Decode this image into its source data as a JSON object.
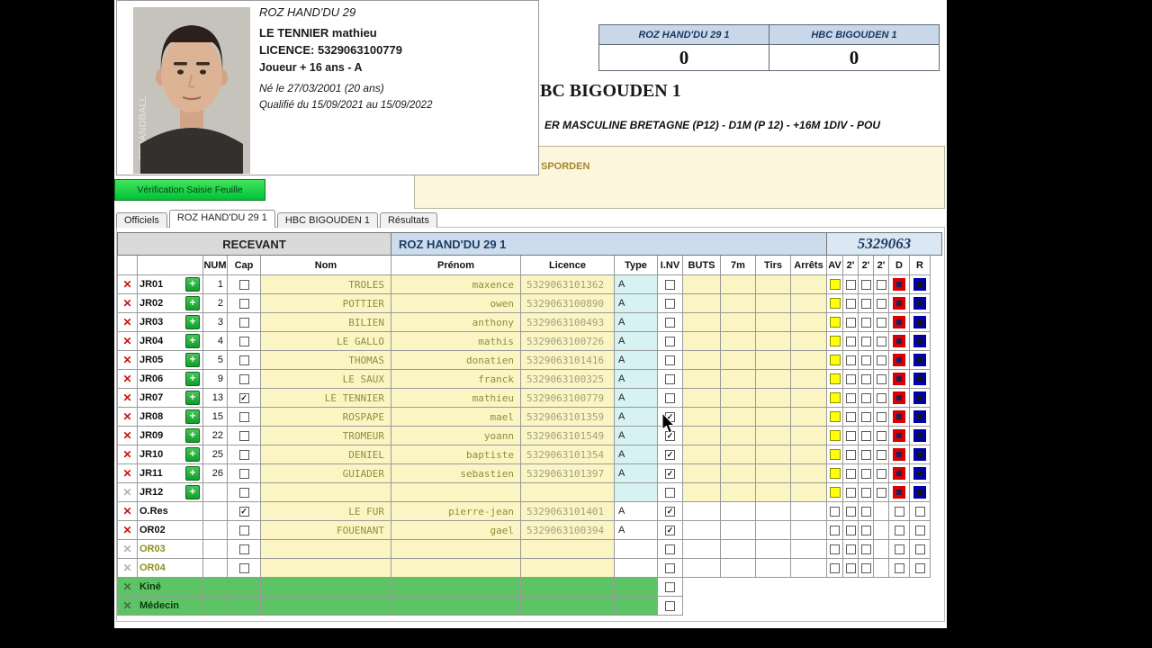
{
  "popup": {
    "club": "ROZ HAND'DU 29",
    "player_name": "LE TENNIER mathieu",
    "licence_line": "LICENCE: 5329063100779",
    "category_line": "Joueur + 16 ans  -  A",
    "birth_line": "Né le 27/03/2001  (20 ans)",
    "qualified_line": "Qualifié du 15/09/2021 au 15/09/2022"
  },
  "scoreboard": {
    "teams": [
      {
        "name": "ROZ HAND'DU 29 1",
        "score": "0"
      },
      {
        "name": "HBC BIGOUDEN 1",
        "score": "0"
      }
    ]
  },
  "match": {
    "title_fragment": "BC BIGOUDEN 1",
    "competition_fragment": "ER MASCULINE BRETAGNE (P12) - D1M (P 12) - +16M 1DIV - POU",
    "venue_fragment": "SPORDEN"
  },
  "actions": {
    "verify_label": "Vérification Saisie Feuille"
  },
  "tabs": {
    "items": [
      "Officiels",
      "ROZ HAND'DU 29 1",
      "HBC BIGOUDEN 1",
      "Résultats"
    ],
    "active_index": 1
  },
  "roster": {
    "recevant_label": "RECEVANT",
    "team_name": "ROZ HAND'DU 29 1",
    "club_code": "5329063",
    "columns": [
      "NUM",
      "Cap",
      "Nom",
      "Prénom",
      "Licence",
      "Type",
      "I.NV",
      "BUTS",
      "7m",
      "Tirs",
      "Arrêts",
      "AV",
      "2'",
      "2'",
      "2'",
      "D",
      "R"
    ],
    "rows": [
      {
        "id": "JR01",
        "type": "player",
        "num": "1",
        "cap": false,
        "nom": "TROLES",
        "prenom": "maxence",
        "licence": "5329063101362",
        "lic_type": "A",
        "inv": false
      },
      {
        "id": "JR02",
        "type": "player",
        "num": "2",
        "cap": false,
        "nom": "POTTIER",
        "prenom": "owen",
        "licence": "5329063100890",
        "lic_type": "A",
        "inv": false
      },
      {
        "id": "JR03",
        "type": "player",
        "num": "3",
        "cap": false,
        "nom": "BILIEN",
        "prenom": "anthony",
        "licence": "5329063100493",
        "lic_type": "A",
        "inv": false
      },
      {
        "id": "JR04",
        "type": "player",
        "num": "4",
        "cap": false,
        "nom": "LE GALLO",
        "prenom": "mathis",
        "licence": "5329063100726",
        "lic_type": "A",
        "inv": false
      },
      {
        "id": "JR05",
        "type": "player",
        "num": "5",
        "cap": false,
        "nom": "THOMAS",
        "prenom": "donatien",
        "licence": "5329063101416",
        "lic_type": "A",
        "inv": false
      },
      {
        "id": "JR06",
        "type": "player",
        "num": "9",
        "cap": false,
        "nom": "LE SAUX",
        "prenom": "franck",
        "licence": "5329063100325",
        "lic_type": "A",
        "inv": false
      },
      {
        "id": "JR07",
        "type": "player",
        "num": "13",
        "cap": true,
        "nom": "LE TENNIER",
        "prenom": "mathieu",
        "licence": "5329063100779",
        "lic_type": "A",
        "inv": false
      },
      {
        "id": "JR08",
        "type": "player",
        "num": "15",
        "cap": false,
        "nom": "ROSPAPE",
        "prenom": "mael",
        "licence": "5329063101359",
        "lic_type": "A",
        "inv": true
      },
      {
        "id": "JR09",
        "type": "player",
        "num": "22",
        "cap": false,
        "nom": "TROMEUR",
        "prenom": "yoann",
        "licence": "5329063101549",
        "lic_type": "A",
        "inv": true
      },
      {
        "id": "JR10",
        "type": "player",
        "num": "25",
        "cap": false,
        "nom": "DENIEL",
        "prenom": "baptiste",
        "licence": "5329063101354",
        "lic_type": "A",
        "inv": true
      },
      {
        "id": "JR11",
        "type": "player",
        "num": "26",
        "cap": false,
        "nom": "GUIADER",
        "prenom": "sebastien",
        "licence": "5329063101397",
        "lic_type": "A",
        "inv": true
      },
      {
        "id": "JR12",
        "type": "player_empty",
        "num": "",
        "cap": false,
        "nom": "",
        "prenom": "",
        "licence": "",
        "lic_type": "",
        "inv": false
      },
      {
        "id": "O.Res",
        "type": "official",
        "num": "",
        "cap": true,
        "nom": "LE FUR",
        "prenom": "pierre-jean",
        "licence": "5329063101401",
        "lic_type": "A",
        "inv": true
      },
      {
        "id": "OR02",
        "type": "official",
        "num": "",
        "cap": false,
        "nom": "FOUENANT",
        "prenom": "gael",
        "licence": "5329063100394",
        "lic_type": "A",
        "inv": true
      },
      {
        "id": "OR03",
        "type": "official_empty",
        "num": "",
        "cap": false,
        "nom": "",
        "prenom": "",
        "licence": "",
        "lic_type": "",
        "inv": false
      },
      {
        "id": "OR04",
        "type": "official_empty",
        "num": "",
        "cap": false,
        "nom": "",
        "prenom": "",
        "licence": "",
        "lic_type": "",
        "inv": false
      },
      {
        "id": "Kiné",
        "type": "staff",
        "num": "",
        "cap": false,
        "nom": "",
        "prenom": "",
        "licence": "",
        "lic_type": "",
        "inv": false
      },
      {
        "id": "Médecin",
        "type": "staff",
        "num": "",
        "cap": false,
        "nom": "",
        "prenom": "",
        "licence": "",
        "lic_type": "",
        "inv": false
      }
    ]
  }
}
